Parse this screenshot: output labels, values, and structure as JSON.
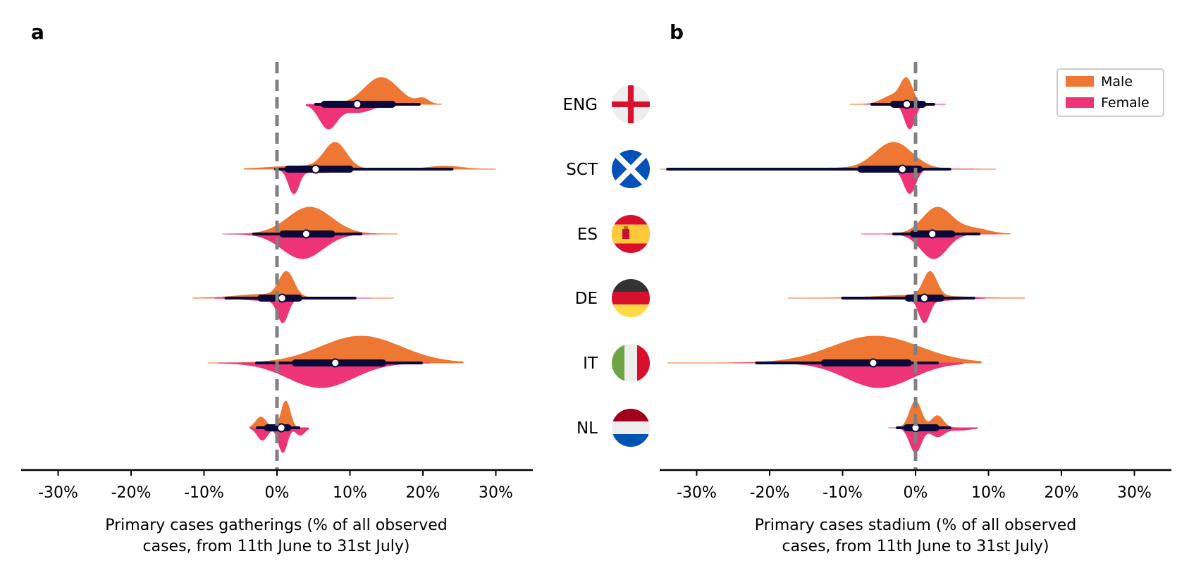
{
  "figure": {
    "countries": [
      {
        "code": "ENG",
        "flag": "england-flag-icon"
      },
      {
        "code": "SCT",
        "flag": "scotland-flag-icon"
      },
      {
        "code": "ES",
        "flag": "spain-flag-icon"
      },
      {
        "code": "DE",
        "flag": "germany-flag-icon"
      },
      {
        "code": "IT",
        "flag": "italy-flag-icon"
      },
      {
        "code": "NL",
        "flag": "netherlands-flag-icon"
      }
    ],
    "colors": {
      "male": "#EE7733",
      "female": "#EE3377",
      "box": "#0a0a3a",
      "reference_line": "#808080"
    }
  },
  "chart_data": [
    {
      "type": "violin",
      "panel_label": "a",
      "xlabel": [
        "Primary cases gatherings (% of all observed",
        "cases, from 11th June to 31st July)"
      ],
      "xlim": [
        -30,
        35
      ],
      "xticks": [
        -30,
        -20,
        -10,
        0,
        10,
        20,
        30
      ],
      "xtick_labels": [
        "-30%",
        "-20%",
        "-10%",
        "0%",
        "10%",
        "20%",
        "30%"
      ],
      "reference_line": 0,
      "series": [
        {
          "country": "ENG",
          "male": {
            "min": 4.5,
            "max": 22.5,
            "peaks": [
              [
                14.3,
                2.3,
                1.0
              ],
              [
                20.0,
                0.8,
                0.2
              ]
            ]
          },
          "female": {
            "min": 4.0,
            "max": 15.0,
            "peaks": [
              [
                7.0,
                1.2,
                1.0
              ],
              [
                11.0,
                2.0,
                0.35
              ]
            ]
          },
          "box": {
            "median": 11.0,
            "q1": 6.5,
            "q3": 15.8,
            "whisker_low": 5.3,
            "whisker_high": 19.5
          }
        },
        {
          "country": "SCT",
          "male": {
            "min": -4.5,
            "max": 30.0,
            "peaks": [
              [
                8.0,
                1.5,
                1.0
              ],
              [
                23.0,
                2.2,
                0.12
              ],
              [
                3.0,
                4.0,
                0.12
              ]
            ]
          },
          "female": {
            "min": 0.0,
            "max": 24.0,
            "peaks": [
              [
                2.3,
                0.7,
                1.0
              ],
              [
                6.0,
                3.0,
                0.15
              ]
            ]
          },
          "box": {
            "median": 5.3,
            "q1": 1.5,
            "q3": 10.0,
            "whisker_low": -0.2,
            "whisker_high": 24.0
          }
        },
        {
          "country": "ES",
          "male": {
            "min": -7.5,
            "max": 16.5,
            "peaks": [
              [
                4.5,
                3.0,
                1.0
              ]
            ]
          },
          "female": {
            "min": -7.0,
            "max": 13.5,
            "peaks": [
              [
                3.5,
                2.8,
                1.0
              ]
            ]
          },
          "box": {
            "median": 4.0,
            "q1": 0.8,
            "q3": 7.5,
            "whisker_low": -3.2,
            "whisker_high": 11.5
          }
        },
        {
          "country": "DE",
          "male": {
            "min": -11.5,
            "max": 16.0,
            "peaks": [
              [
                1.3,
                1.0,
                1.0
              ],
              [
                -2.0,
                3.5,
                0.15
              ]
            ]
          },
          "female": {
            "min": -8.5,
            "max": 13.0,
            "peaks": [
              [
                0.8,
                0.7,
                1.0
              ],
              [
                -1.0,
                3.0,
                0.12
              ]
            ]
          },
          "box": {
            "median": 0.7,
            "q1": -2.2,
            "q3": 3.0,
            "whisker_low": -7.0,
            "whisker_high": 10.7
          }
        },
        {
          "country": "IT",
          "male": {
            "min": -9.5,
            "max": 25.5,
            "peaks": [
              [
                11.5,
                5.5,
                1.0
              ]
            ]
          },
          "female": {
            "min": -8.0,
            "max": 21.0,
            "peaks": [
              [
                6.0,
                4.5,
                1.0
              ]
            ]
          },
          "box": {
            "median": 8.0,
            "q1": 2.5,
            "q3": 14.5,
            "whisker_low": -2.8,
            "whisker_high": 19.8
          }
        },
        {
          "country": "NL",
          "male": {
            "min": -3.7,
            "max": 4.3,
            "peaks": [
              [
                1.2,
                0.6,
                1.0
              ],
              [
                -2.2,
                0.7,
                0.4
              ]
            ]
          },
          "female": {
            "min": -3.7,
            "max": 4.3,
            "peaks": [
              [
                0.8,
                0.6,
                1.0
              ],
              [
                -2.0,
                0.7,
                0.5
              ],
              [
                3.2,
                0.6,
                0.3
              ]
            ]
          },
          "box": {
            "median": 0.6,
            "q1": -1.3,
            "q3": 1.5,
            "whisker_low": -2.7,
            "whisker_high": 3.0
          }
        }
      ]
    },
    {
      "type": "violin",
      "panel_label": "b",
      "xlabel": [
        "Primary cases stadium (% of all observed",
        "cases, from 11th June to 31st July)"
      ],
      "xlim": [
        -35,
        35
      ],
      "xticks": [
        -30,
        -20,
        -10,
        0,
        10,
        20,
        30
      ],
      "xtick_labels": [
        "-30%",
        "-20%",
        "-10%",
        "0%",
        "10%",
        "20%",
        "30%"
      ],
      "reference_line": 0,
      "legend": {
        "position": "top-right",
        "entries": [
          "Male",
          "Female"
        ]
      },
      "series": [
        {
          "country": "ENG",
          "male": {
            "min": -9.0,
            "max": 4.2,
            "peaks": [
              [
                -1.2,
                0.8,
                1.0
              ],
              [
                -3.0,
                1.5,
                0.4
              ]
            ]
          },
          "female": {
            "min": -7.0,
            "max": 4.0,
            "peaks": [
              [
                -0.8,
                0.7,
                1.0
              ]
            ]
          },
          "box": {
            "median": -1.2,
            "q1": -3.0,
            "q3": 1.0,
            "whisker_low": -6.0,
            "whisker_high": 2.5
          }
        },
        {
          "country": "SCT",
          "male": {
            "min": -35.0,
            "max": 11.0,
            "peaks": [
              [
                -3.0,
                2.5,
                1.0
              ],
              [
                -12.0,
                8.0,
                0.04
              ]
            ]
          },
          "female": {
            "min": -34.0,
            "max": 8.0,
            "peaks": [
              [
                -0.8,
                0.8,
                1.0
              ]
            ]
          },
          "box": {
            "median": -1.8,
            "q1": -7.5,
            "q3": 0.5,
            "whisker_low": -34.0,
            "whisker_high": 4.7
          }
        },
        {
          "country": "ES",
          "male": {
            "min": -7.5,
            "max": 13.0,
            "peaks": [
              [
                3.0,
                2.0,
                1.0
              ],
              [
                8.0,
                2.0,
                0.2
              ]
            ]
          },
          "female": {
            "min": -7.0,
            "max": 11.0,
            "peaks": [
              [
                2.5,
                1.8,
                1.0
              ]
            ]
          },
          "box": {
            "median": 2.3,
            "q1": -0.3,
            "q3": 5.0,
            "whisker_low": -3.0,
            "whisker_high": 8.7
          }
        },
        {
          "country": "DE",
          "male": {
            "min": -17.5,
            "max": 15.0,
            "peaks": [
              [
                2.0,
                0.9,
                1.0
              ],
              [
                0.0,
                5.0,
                0.12
              ]
            ]
          },
          "female": {
            "min": -10.0,
            "max": 9.5,
            "peaks": [
              [
                1.2,
                0.7,
                1.0
              ],
              [
                2.5,
                3.0,
                0.12
              ]
            ]
          },
          "box": {
            "median": 1.2,
            "q1": -1.0,
            "q3": 3.5,
            "whisker_low": -10.0,
            "whisker_high": 8.0
          }
        },
        {
          "country": "IT",
          "male": {
            "min": -34.0,
            "max": 9.0,
            "peaks": [
              [
                -5.5,
                6.0,
                1.0
              ]
            ]
          },
          "female": {
            "min": -25.0,
            "max": 6.5,
            "peaks": [
              [
                -5.0,
                4.5,
                1.0
              ]
            ]
          },
          "box": {
            "median": -5.8,
            "q1": -12.5,
            "q3": -1.0,
            "whisker_low": -21.8,
            "whisker_high": 3.0
          }
        },
        {
          "country": "NL",
          "male": {
            "min": -3.7,
            "max": 8.5,
            "peaks": [
              [
                0.0,
                0.8,
                1.0
              ],
              [
                3.0,
                0.8,
                0.45
              ]
            ]
          },
          "female": {
            "min": -3.7,
            "max": 8.5,
            "peaks": [
              [
                0.0,
                0.8,
                1.0
              ],
              [
                3.0,
                0.9,
                0.35
              ],
              [
                6.0,
                1.5,
                0.1
              ]
            ]
          },
          "box": {
            "median": 0.0,
            "q1": -1.2,
            "q3": 2.8,
            "whisker_low": -2.5,
            "whisker_high": 4.7
          }
        }
      ]
    }
  ]
}
